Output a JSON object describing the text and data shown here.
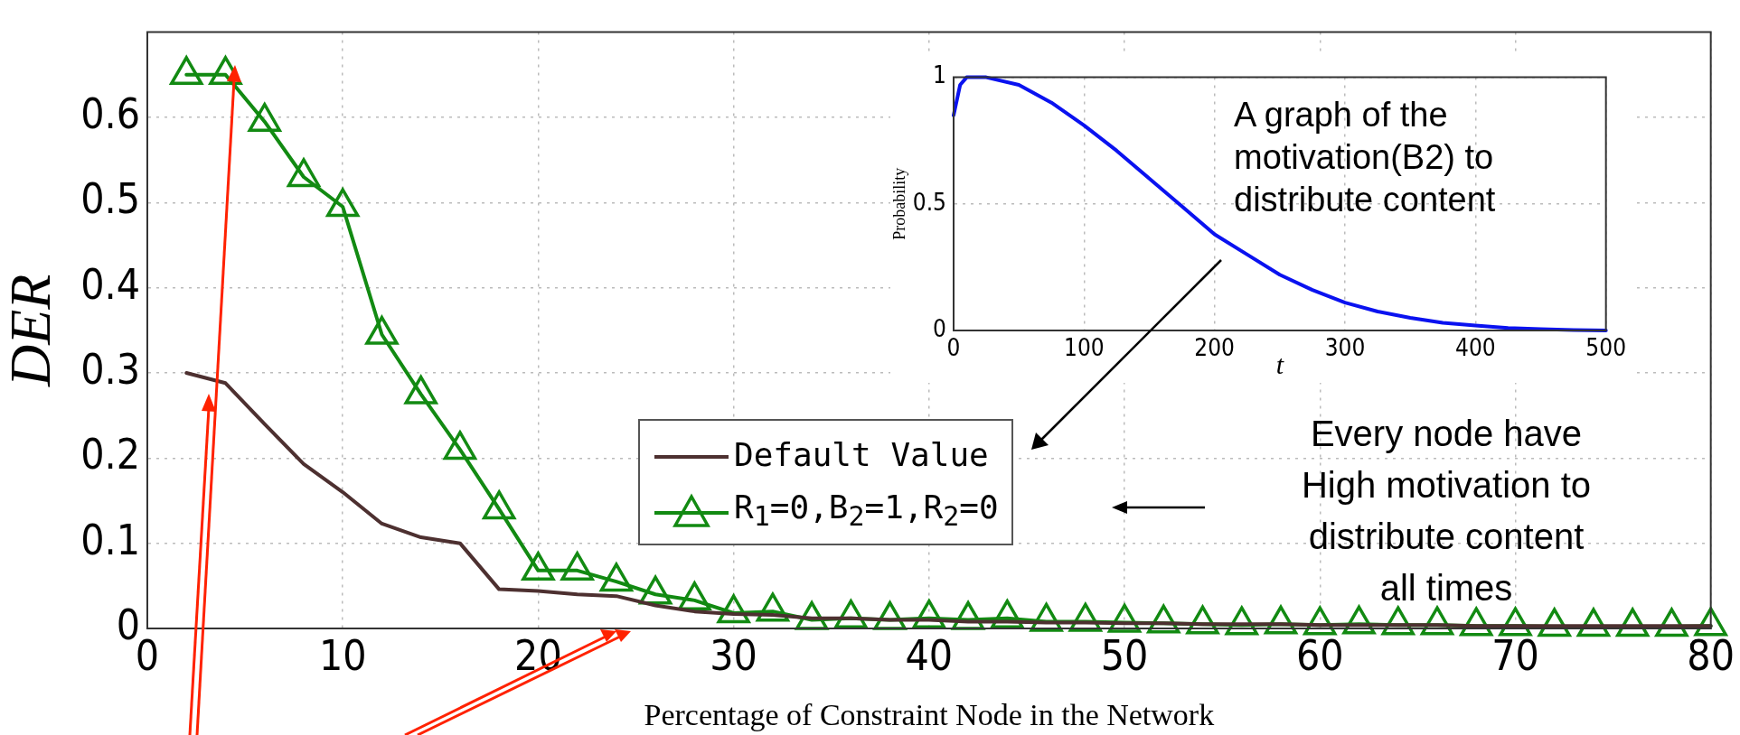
{
  "chart_data": [
    {
      "type": "line",
      "xlabel": "Percentage of Constraint Node in the Network",
      "ylabel": "DER",
      "x": [
        2,
        4,
        6,
        8,
        10,
        12,
        14,
        16,
        18,
        20,
        22,
        24,
        26,
        28,
        30,
        32,
        34,
        36,
        38,
        40,
        42,
        44,
        46,
        48,
        50,
        52,
        54,
        56,
        58,
        60,
        62,
        64,
        66,
        68,
        70,
        72,
        74,
        76,
        78,
        80
      ],
      "series": [
        {
          "name": "Default Value",
          "color": "#4d3030",
          "marker": "none",
          "values": [
            0.3,
            0.288,
            0.24,
            0.193,
            0.16,
            0.123,
            0.107,
            0.1,
            0.046,
            0.044,
            0.04,
            0.038,
            0.027,
            0.02,
            0.017,
            0.016,
            0.012,
            0.012,
            0.01,
            0.01,
            0.008,
            0.008,
            0.007,
            0.007,
            0.006,
            0.006,
            0.005,
            0.005,
            0.005,
            0.004,
            0.004,
            0.004,
            0.004,
            0.003,
            0.003,
            0.003,
            0.003,
            0.003,
            0.003,
            0.003
          ]
        },
        {
          "name": "R$_{1}$=0,B$_{2}$=1,R$_{2}$=0",
          "color": "#128a12",
          "marker": "triangle",
          "values": [
            0.65,
            0.65,
            0.595,
            0.53,
            0.495,
            0.345,
            0.275,
            0.21,
            0.14,
            0.068,
            0.068,
            0.055,
            0.04,
            0.033,
            0.018,
            0.02,
            0.01,
            0.012,
            0.01,
            0.012,
            0.01,
            0.012,
            0.008,
            0.008,
            0.007,
            0.006,
            0.005,
            0.004,
            0.005,
            0.004,
            0.005,
            0.004,
            0.004,
            0.003,
            0.003,
            0.002,
            0.002,
            0.002,
            0.002,
            0.003
          ]
        }
      ],
      "xlim": [
        0,
        80
      ],
      "xticks": [
        0,
        10,
        20,
        30,
        40,
        50,
        60,
        70,
        80
      ],
      "ylim": [
        0,
        0.7
      ],
      "yticks": [
        0,
        0.1,
        0.2,
        0.3,
        0.4,
        0.5,
        0.6
      ],
      "grid": true,
      "legend": "bottom",
      "annotations": [
        "Every node have High motivation to distribute content all times"
      ]
    },
    {
      "type": "line",
      "xlabel": "t",
      "ylabel": "Probability",
      "x": [
        0,
        5,
        10,
        25,
        50,
        75,
        100,
        125,
        150,
        175,
        200,
        225,
        250,
        275,
        300,
        325,
        350,
        375,
        400,
        425,
        450,
        475,
        500
      ],
      "series": [
        {
          "color": "#0a12f0",
          "values": [
            0.85,
            0.97,
            1,
            1,
            0.97,
            0.9,
            0.81,
            0.71,
            0.6,
            0.49,
            0.38,
            0.3,
            0.22,
            0.16,
            0.11,
            0.075,
            0.05,
            0.03,
            0.02,
            0.01,
            0.005,
            0.002,
            0
          ]
        }
      ],
      "xlim": [
        0,
        500
      ],
      "xticks": [
        0,
        100,
        200,
        300,
        400,
        500
      ],
      "ylim": [
        0,
        1
      ],
      "yticks": [
        0,
        0.5,
        1
      ],
      "grid": true,
      "annotations": [
        "A graph of the motivation(B2) to distribute content"
      ]
    }
  ]
}
